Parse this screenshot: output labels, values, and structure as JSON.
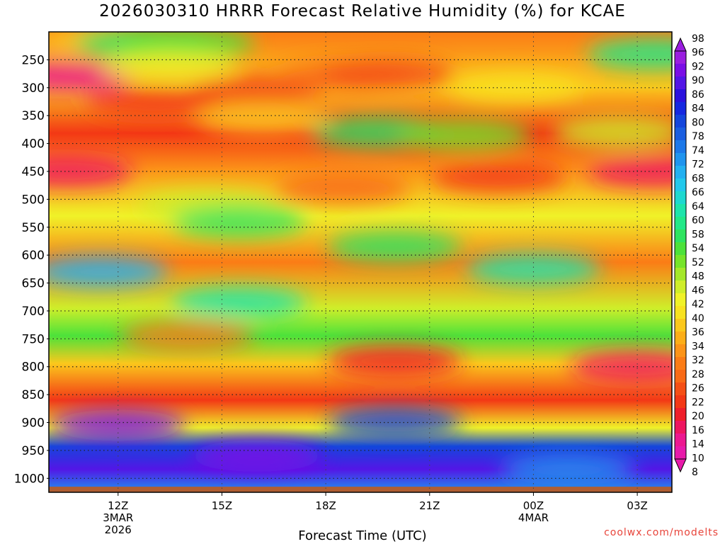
{
  "title": "2026030310 HRRR Forecast Relative Humidity (%) for KCAE",
  "x_label": "Forecast Time (UTC)",
  "credit": "coolwx.com/modelts",
  "chart_data": {
    "type": "heatmap",
    "title": "2026030310 HRRR Forecast Relative Humidity (%) for KCAE",
    "xlabel": "Forecast Time (UTC)",
    "ylabel": "",
    "y_axis": {
      "ticks": [
        250,
        300,
        350,
        400,
        450,
        500,
        550,
        600,
        650,
        700,
        750,
        800,
        850,
        900,
        950,
        1000
      ],
      "range_hPa": [
        200,
        1025
      ]
    },
    "x_axis": {
      "ticks": [
        {
          "label": "12Z",
          "sub": [
            "3MAR",
            "2026"
          ],
          "hour": 12
        },
        {
          "label": "15Z",
          "sub": [],
          "hour": 15
        },
        {
          "label": "18Z",
          "sub": [],
          "hour": 18
        },
        {
          "label": "21Z",
          "sub": [],
          "hour": 21
        },
        {
          "label": "00Z",
          "sub": [
            "4MAR"
          ],
          "hour": 24
        },
        {
          "label": "03Z",
          "sub": [],
          "hour": 27
        }
      ],
      "range_hours": [
        10,
        28
      ]
    },
    "grid": true,
    "colorbar": {
      "labels": [
        98,
        96,
        92,
        90,
        86,
        84,
        80,
        78,
        74,
        72,
        68,
        66,
        64,
        60,
        58,
        54,
        52,
        48,
        46,
        42,
        40,
        36,
        34,
        32,
        28,
        26,
        22,
        20,
        16,
        14,
        10,
        8
      ],
      "colors": [
        "#9a1ee0",
        "#7a0ee6",
        "#5316e6",
        "#2a12dd",
        "#1528e0",
        "#1446dc",
        "#1a5ee0",
        "#1c78e8",
        "#1f94ee",
        "#23b0f0",
        "#22c8ec",
        "#1ed8d0",
        "#1ee4ab",
        "#22e888",
        "#2ee460",
        "#4ce23a",
        "#76e42a",
        "#a4e82a",
        "#cfee2a",
        "#f0f228",
        "#f8e220",
        "#fbc81c",
        "#fcae18",
        "#fc9418",
        "#fb7c16",
        "#f96a16",
        "#f54f15",
        "#f33815",
        "#ef1e2a",
        "#ee1660",
        "#ec1890",
        "#e81aaa"
      ]
    },
    "values": [
      {
        "x": 10.5,
        "y": 280,
        "rh": 10
      },
      {
        "x": 10.5,
        "y": 450,
        "rh": 12
      },
      {
        "x": 11.5,
        "y": 215,
        "rh": 36
      },
      {
        "x": 12.7,
        "y": 220,
        "rh": 56
      },
      {
        "x": 14.0,
        "y": 220,
        "rh": 54
      },
      {
        "x": 13.5,
        "y": 260,
        "rh": 42
      },
      {
        "x": 13.0,
        "y": 325,
        "rh": 18
      },
      {
        "x": 16.0,
        "y": 305,
        "rh": 18
      },
      {
        "x": 18.5,
        "y": 280,
        "rh": 26
      },
      {
        "x": 19.8,
        "y": 275,
        "rh": 22
      },
      {
        "x": 16.2,
        "y": 355,
        "rh": 36
      },
      {
        "x": 19.5,
        "y": 380,
        "rh": 56
      },
      {
        "x": 22.0,
        "y": 385,
        "rh": 50
      },
      {
        "x": 23.5,
        "y": 300,
        "rh": 38
      },
      {
        "x": 27.5,
        "y": 240,
        "rh": 60
      },
      {
        "x": 26.5,
        "y": 380,
        "rh": 46
      },
      {
        "x": 27.5,
        "y": 450,
        "rh": 12
      },
      {
        "x": 23.0,
        "y": 460,
        "rh": 20
      },
      {
        "x": 18.5,
        "y": 480,
        "rh": 26
      },
      {
        "x": 14.5,
        "y": 510,
        "rh": 46
      },
      {
        "x": 15.5,
        "y": 540,
        "rh": 56
      },
      {
        "x": 20.0,
        "y": 585,
        "rh": 58
      },
      {
        "x": 11.5,
        "y": 630,
        "rh": 72
      },
      {
        "x": 24.0,
        "y": 625,
        "rh": 62
      },
      {
        "x": 15.5,
        "y": 685,
        "rh": 62
      },
      {
        "x": 14.0,
        "y": 745,
        "rh": 28
      },
      {
        "x": 20.0,
        "y": 790,
        "rh": 16
      },
      {
        "x": 27.0,
        "y": 800,
        "rh": 14
      },
      {
        "x": 12.0,
        "y": 905,
        "rh": 96
      },
      {
        "x": 20.0,
        "y": 900,
        "rh": 84
      },
      {
        "x": 16.0,
        "y": 960,
        "rh": 96
      },
      {
        "x": 25.0,
        "y": 985,
        "rh": 74
      }
    ],
    "terrain_color": "#b05e32"
  }
}
